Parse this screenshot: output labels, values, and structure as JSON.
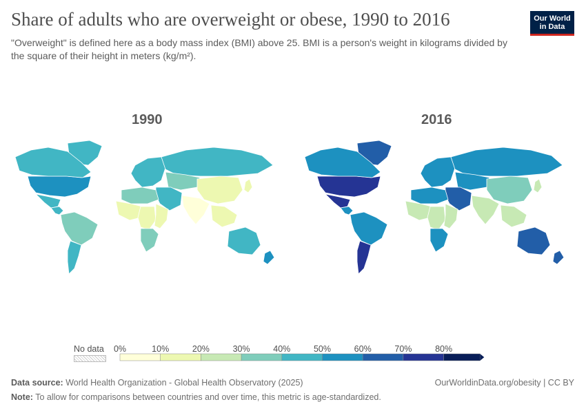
{
  "header": {
    "title": "Share of adults who are overweight or obese, 1990 to 2016",
    "subtitle": "\"Overweight\" is defined here as a body mass index (BMI) above 25. BMI is a person's weight in kilograms divided by the square of their height in meters (kg/m²).",
    "logo_line1": "Our World",
    "logo_line2": "in Data"
  },
  "maps": [
    {
      "year": "1990"
    },
    {
      "year": "2016"
    }
  ],
  "legend": {
    "no_data_label": "No data",
    "ticks": [
      "0%",
      "10%",
      "20%",
      "30%",
      "40%",
      "50%",
      "60%",
      "70%",
      "80%"
    ],
    "bins": [
      {
        "from": 0,
        "to": 10,
        "color": "#ffffd9"
      },
      {
        "from": 10,
        "to": 20,
        "color": "#edf8b1"
      },
      {
        "from": 20,
        "to": 30,
        "color": "#c7e9b4"
      },
      {
        "from": 30,
        "to": 40,
        "color": "#7fcdbb"
      },
      {
        "from": 40,
        "to": 50,
        "color": "#41b6c4"
      },
      {
        "from": 50,
        "to": 60,
        "color": "#1d91c0"
      },
      {
        "from": 60,
        "to": 70,
        "color": "#225ea8"
      },
      {
        "from": 70,
        "to": 80,
        "color": "#253494"
      },
      {
        "from": 80,
        "to": 100,
        "color": "#081d58"
      }
    ]
  },
  "regions": [
    {
      "name": "north-america",
      "v1990": 53,
      "v2016": 72
    },
    {
      "name": "greenland",
      "v1990": 48,
      "v2016": 66
    },
    {
      "name": "canada",
      "v1990": 45,
      "v2016": 58
    },
    {
      "name": "mexico",
      "v1990": 48,
      "v2016": 72
    },
    {
      "name": "central-america",
      "v1990": 40,
      "v2016": 56
    },
    {
      "name": "south-america",
      "v1990": 38,
      "v2016": 55
    },
    {
      "name": "southern-cone",
      "v1990": 45,
      "v2016": 72
    },
    {
      "name": "europe",
      "v1990": 45,
      "v2016": 56
    },
    {
      "name": "russia",
      "v1990": 43,
      "v2016": 56
    },
    {
      "name": "central-asia",
      "v1990": 36,
      "v2016": 52
    },
    {
      "name": "middle-east",
      "v1990": 42,
      "v2016": 68
    },
    {
      "name": "north-africa",
      "v1990": 32,
      "v2016": 58
    },
    {
      "name": "west-africa",
      "v1990": 12,
      "v2016": 24
    },
    {
      "name": "central-africa",
      "v1990": 14,
      "v2016": 28
    },
    {
      "name": "east-africa",
      "v1990": 10,
      "v2016": 22
    },
    {
      "name": "southern-africa",
      "v1990": 35,
      "v2016": 55
    },
    {
      "name": "south-asia",
      "v1990": 8,
      "v2016": 20
    },
    {
      "name": "china",
      "v1990": 14,
      "v2016": 34
    },
    {
      "name": "southeast-asia",
      "v1990": 12,
      "v2016": 28
    },
    {
      "name": "japan",
      "v1990": 18,
      "v2016": 26
    },
    {
      "name": "australia",
      "v1990": 48,
      "v2016": 64
    },
    {
      "name": "new-zealand",
      "v1990": 50,
      "v2016": 66
    }
  ],
  "footer": {
    "source_label": "Data source:",
    "source_text": "World Health Organization - Global Health Observatory (2025)",
    "url": "OurWorldinData.org/obesity | CC BY",
    "note_label": "Note:",
    "note_text": "To allow for comparisons between countries and over time, this metric is age-standardized."
  }
}
